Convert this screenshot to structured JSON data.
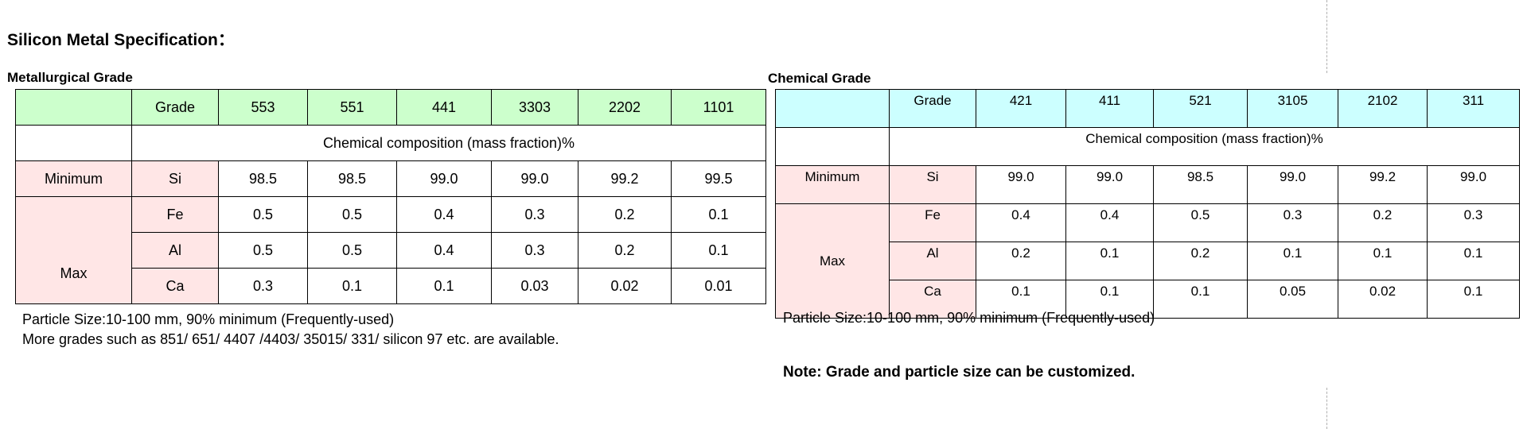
{
  "page": {
    "title": "Silicon Metal Specification："
  },
  "metallurgical": {
    "title": "Metallurgical Grade",
    "grade_label": "Grade",
    "grades": [
      "553",
      "551",
      "441",
      "3303",
      "2202",
      "1101"
    ],
    "composition_label": "Chemical composition (mass fraction)%",
    "minimum_label": "Minimum",
    "max_label": "Max",
    "rows": [
      {
        "element": "Si",
        "values": [
          "98.5",
          "98.5",
          "99.0",
          "99.0",
          "99.2",
          "99.5"
        ]
      },
      {
        "element": "Fe",
        "values": [
          "0.5",
          "0.5",
          "0.4",
          "0.3",
          "0.2",
          "0.1"
        ]
      },
      {
        "element": "Al",
        "values": [
          "0.5",
          "0.5",
          "0.4",
          "0.3",
          "0.2",
          "0.1"
        ]
      },
      {
        "element": "Ca",
        "values": [
          "0.3",
          "0.1",
          "0.1",
          "0.03",
          "0.02",
          "0.01"
        ]
      }
    ],
    "note_particle": "Particle Size:10-100 mm, 90% minimum (Frequently-used)",
    "note_grades": "More grades such as 851/ 651/ 4407 /4403/ 35015/ 331/ silicon 97 etc. are available."
  },
  "chemical": {
    "title": "Chemical Grade",
    "grade_label": "Grade",
    "grades": [
      "421",
      "411",
      "521",
      "3105",
      "2102",
      "311"
    ],
    "composition_label": "Chemical composition (mass fraction)%",
    "minimum_label": "Minimum",
    "max_label": "Max",
    "rows": [
      {
        "element": "Si",
        "values": [
          "99.0",
          "99.0",
          "98.5",
          "99.0",
          "99.2",
          "99.0"
        ]
      },
      {
        "element": "Fe",
        "values": [
          "0.4",
          "0.4",
          "0.5",
          "0.3",
          "0.2",
          "0.3"
        ]
      },
      {
        "element": "Al",
        "values": [
          "0.2",
          "0.1",
          "0.2",
          "0.1",
          "0.1",
          "0.1"
        ]
      },
      {
        "element": "Ca",
        "values": [
          "0.1",
          "0.1",
          "0.1",
          "0.05",
          "0.02",
          "0.1"
        ]
      }
    ],
    "note_particle": "Particle Size:10-100 mm, 90% minimum (Frequently-used)"
  },
  "note": "Note: Grade and particle size can be customized.",
  "colors": {
    "metallurgical_header": "#ccffcc",
    "chemical_header": "#ccffff",
    "label_cells": "#ffe6e6"
  }
}
